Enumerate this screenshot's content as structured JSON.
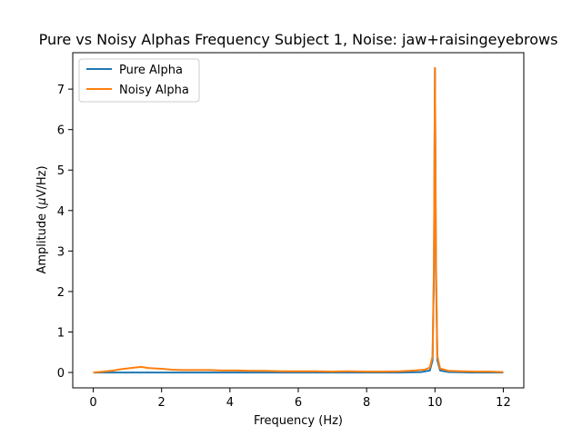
{
  "chart_data": {
    "type": "line",
    "title": "Pure vs Noisy Alphas Frequency Subject 1, Noise: jaw+raisingeyebrows",
    "xlabel": "Frequency (Hz)",
    "ylabel_prefix": "Amplitude (",
    "ylabel_mu": "μ",
    "ylabel_suffix": "V/Hz)",
    "xlim": [
      -0.6,
      12.6
    ],
    "ylim": [
      -0.38,
      7.9
    ],
    "xticks": [
      0,
      2,
      4,
      6,
      8,
      10,
      12
    ],
    "yticks": [
      0,
      1,
      2,
      3,
      4,
      5,
      6,
      7
    ],
    "legend_position": "upper-left",
    "series": [
      {
        "name": "Pure Alpha",
        "color": "#1f77b4",
        "x": [
          0,
          1,
          2,
          3,
          4,
          5,
          6,
          7,
          8,
          9,
          9.6,
          9.85,
          9.93,
          9.97,
          10.0,
          10.03,
          10.07,
          10.15,
          10.4,
          11,
          12
        ],
        "y": [
          0.0,
          0.0,
          0.0,
          0.0,
          0.0,
          0.0,
          0.0,
          0.0,
          0.0,
          0.0,
          0.01,
          0.05,
          0.3,
          2.5,
          7.52,
          2.5,
          0.3,
          0.05,
          0.01,
          0.0,
          0.0
        ]
      },
      {
        "name": "Noisy Alpha",
        "color": "#ff7f0e",
        "x": [
          0,
          0.3,
          0.6,
          0.8,
          1.0,
          1.2,
          1.4,
          1.6,
          1.8,
          2.0,
          2.3,
          2.6,
          3.0,
          3.4,
          3.8,
          4.2,
          4.6,
          5.0,
          5.5,
          6.0,
          6.5,
          7.0,
          7.5,
          8.0,
          8.5,
          9.0,
          9.4,
          9.7,
          9.85,
          9.93,
          9.97,
          10.0,
          10.03,
          10.07,
          10.15,
          10.4,
          10.8,
          11.2,
          11.6,
          12
        ],
        "y": [
          0.0,
          0.02,
          0.05,
          0.08,
          0.1,
          0.12,
          0.14,
          0.11,
          0.1,
          0.09,
          0.07,
          0.06,
          0.06,
          0.06,
          0.05,
          0.05,
          0.04,
          0.04,
          0.03,
          0.03,
          0.03,
          0.02,
          0.03,
          0.02,
          0.02,
          0.03,
          0.05,
          0.07,
          0.12,
          0.4,
          2.7,
          7.52,
          2.7,
          0.4,
          0.1,
          0.04,
          0.03,
          0.02,
          0.02,
          0.01
        ]
      }
    ]
  }
}
